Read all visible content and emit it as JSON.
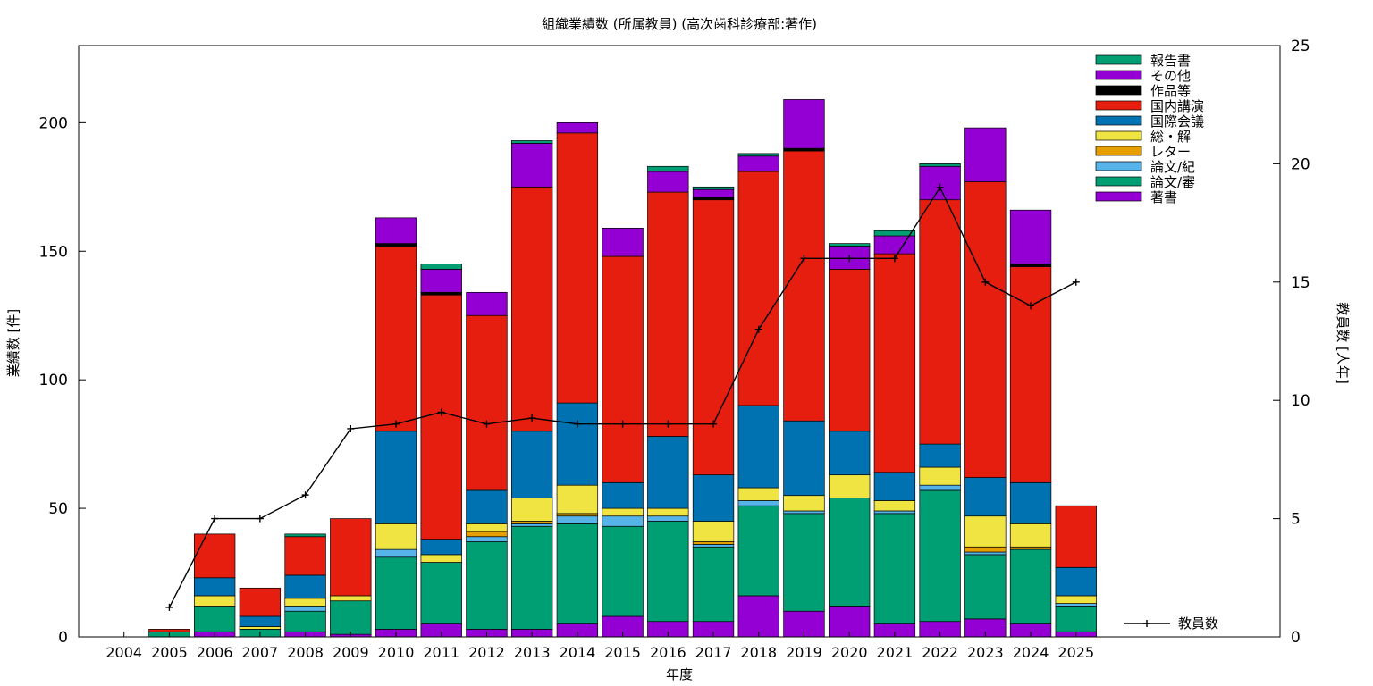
{
  "chart_data": {
    "type": "bar",
    "stacked": true,
    "title": "組織業績数 (所属教員) (高次歯科診療部:著作)",
    "xlabel": "年度",
    "ylabel": "業績数 [件]",
    "y2label": "教員数 [人年]",
    "ylim": [
      0,
      230
    ],
    "y2lim": [
      0,
      25
    ],
    "yticks": [
      0,
      50,
      100,
      150,
      200
    ],
    "y2ticks": [
      0,
      5,
      10,
      15,
      20,
      25
    ],
    "grid": false,
    "legend_position": "top-right",
    "categories": [
      "2004",
      "2005",
      "2006",
      "2007",
      "2008",
      "2009",
      "2010",
      "2011",
      "2012",
      "2013",
      "2014",
      "2015",
      "2016",
      "2017",
      "2018",
      "2019",
      "2020",
      "2021",
      "2022",
      "2023",
      "2024",
      "2025"
    ],
    "first_category_gray": true,
    "series": [
      {
        "name": "著書",
        "color": "#9400D3",
        "values": [
          0,
          0,
          2,
          0,
          2,
          1,
          3,
          5,
          3,
          3,
          5,
          8,
          6,
          6,
          16,
          10,
          12,
          5,
          6,
          7,
          5,
          2
        ]
      },
      {
        "name": "論文/審",
        "color": "#009E73",
        "values": [
          0,
          2,
          10,
          3,
          8,
          13,
          28,
          24,
          34,
          40,
          39,
          35,
          39,
          29,
          35,
          38,
          42,
          43,
          51,
          25,
          29,
          10
        ]
      },
      {
        "name": "論文/紀",
        "color": "#56B4E9",
        "values": [
          0,
          0,
          0,
          0,
          2,
          0,
          3,
          0,
          2,
          1,
          3,
          4,
          2,
          1,
          2,
          1,
          0,
          1,
          2,
          1,
          0,
          1
        ]
      },
      {
        "name": "レター",
        "color": "#E69F00",
        "values": [
          0,
          0,
          0,
          0,
          0,
          0,
          0,
          0,
          2,
          1,
          1,
          0,
          0,
          1,
          0,
          0,
          0,
          0,
          0,
          2,
          1,
          0
        ]
      },
      {
        "name": "総・解",
        "color": "#F0E442",
        "values": [
          0,
          0,
          4,
          1,
          3,
          2,
          10,
          3,
          3,
          9,
          11,
          3,
          3,
          8,
          5,
          6,
          9,
          4,
          7,
          12,
          9,
          3
        ]
      },
      {
        "name": "国際会議",
        "color": "#0072B2",
        "values": [
          0,
          0,
          7,
          4,
          9,
          0,
          36,
          6,
          13,
          26,
          32,
          10,
          28,
          18,
          32,
          29,
          17,
          11,
          9,
          15,
          16,
          11
        ]
      },
      {
        "name": "国内講演",
        "color": "#E51E10",
        "values": [
          0,
          1,
          17,
          11,
          15,
          30,
          72,
          95,
          68,
          95,
          105,
          88,
          95,
          107,
          91,
          105,
          63,
          85,
          95,
          115,
          84,
          24
        ]
      },
      {
        "name": "作品等",
        "color": "#000000",
        "values": [
          0,
          0,
          0,
          0,
          0,
          0,
          1,
          1,
          0,
          0,
          0,
          0,
          0,
          1,
          0,
          1,
          0,
          0,
          0,
          0,
          1,
          0
        ]
      },
      {
        "name": "その他",
        "color": "#9400D3",
        "values": [
          0,
          0,
          0,
          0,
          0,
          0,
          10,
          9,
          9,
          17,
          4,
          11,
          8,
          3,
          6,
          19,
          9,
          7,
          13,
          21,
          21,
          0
        ]
      },
      {
        "name": "報告書",
        "color": "#009E73",
        "values": [
          0,
          0,
          0,
          0,
          1,
          0,
          0,
          2,
          0,
          1,
          0,
          0,
          2,
          1,
          1,
          0,
          1,
          2,
          1,
          0,
          0,
          0
        ]
      }
    ],
    "line_series": {
      "name": "教員数",
      "axis": "y2",
      "color": "#000000",
      "x": [
        "2005",
        "2006",
        "2007",
        "2008",
        "2009",
        "2010",
        "2011",
        "2012",
        "2013",
        "2014",
        "2015",
        "2016",
        "2017",
        "2018",
        "2019",
        "2020",
        "2021",
        "2022",
        "2023",
        "2024",
        "2025"
      ],
      "values": [
        1.25,
        5,
        5,
        6,
        8.8,
        9,
        9.5,
        9,
        9.25,
        9,
        9,
        9,
        9,
        13,
        16,
        16,
        16,
        19,
        15,
        14,
        15
      ]
    }
  }
}
